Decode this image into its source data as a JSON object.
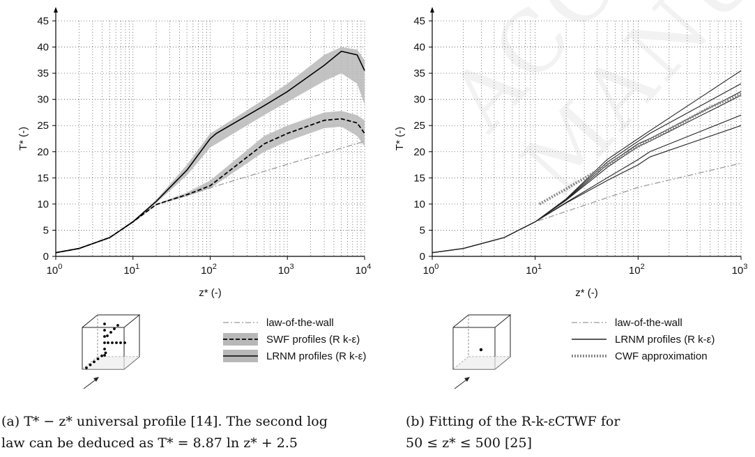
{
  "watermark": "ACCEPTED MANUSCRIPT",
  "chart_data": [
    {
      "type": "line",
      "panel": "a",
      "xlabel": "z* (-)",
      "ylabel": "T* (-)",
      "x_scale": "log",
      "xlim": [
        1,
        10000
      ],
      "ylim": [
        0,
        45
      ],
      "x_ticks": [
        "10^0",
        "10^1",
        "10^2",
        "10^3",
        "10^4"
      ],
      "y_ticks": [
        "0",
        "5",
        "10",
        "15",
        "20",
        "25",
        "30",
        "35",
        "40",
        "45"
      ],
      "grid": true,
      "legend": [
        "law-of-the-wall",
        "SWF profiles (R k-ε)",
        "LRNM profiles (R k-ε)"
      ],
      "legend_placement": "below",
      "series": [
        {
          "name": "law-of-the-wall",
          "style": "dashdot",
          "color": "#999999",
          "x": [
            1,
            2,
            5,
            10,
            20,
            50,
            100,
            1000,
            10000
          ],
          "y": [
            0.7,
            1.5,
            3.6,
            6.6,
            9.9,
            11.7,
            13.1,
            17.6,
            22.0
          ]
        },
        {
          "name": "SWF profiles (R k-ε)",
          "style": "dashed",
          "color": "#000000",
          "x": [
            1,
            2,
            5,
            10,
            20,
            50,
            100,
            500,
            1000,
            3000,
            5000,
            8000,
            10000
          ],
          "y": [
            0.7,
            1.5,
            3.6,
            6.6,
            9.9,
            11.8,
            13.5,
            21.5,
            23.5,
            26.0,
            26.3,
            25.5,
            23.5
          ],
          "band_upper": [
            0.8,
            1.6,
            3.7,
            6.8,
            10.0,
            12.2,
            14.5,
            23.0,
            25.0,
            27.5,
            27.8,
            27.0,
            26.0
          ],
          "band_lower": [
            0.6,
            1.4,
            3.5,
            6.4,
            9.8,
            11.5,
            13.0,
            20.0,
            22.0,
            24.5,
            24.8,
            23.0,
            21.0
          ]
        },
        {
          "name": "LRNM profiles (R k-ε)",
          "style": "solid",
          "color": "#000000",
          "x": [
            1,
            2,
            5,
            10,
            20,
            50,
            100,
            120,
            500,
            1000,
            3000,
            5000,
            8000,
            10000
          ],
          "y": [
            0.7,
            1.5,
            3.6,
            6.6,
            10.5,
            16.5,
            22.5,
            23.5,
            28.8,
            31.5,
            36.5,
            39.2,
            38.5,
            35.5
          ],
          "band_upper": [
            0.8,
            1.6,
            3.7,
            6.8,
            10.8,
            17.5,
            23.5,
            24.2,
            30.0,
            33.0,
            38.5,
            40.0,
            39.5,
            37.5
          ],
          "band_lower": [
            0.6,
            1.4,
            3.5,
            6.4,
            10.2,
            15.5,
            20.8,
            21.5,
            27.0,
            29.5,
            33.5,
            35.0,
            33.0,
            29.0
          ]
        }
      ]
    },
    {
      "type": "line",
      "panel": "b",
      "xlabel": "z* (-)",
      "ylabel": "T* (-)",
      "x_scale": "log",
      "xlim": [
        1,
        1000
      ],
      "ylim": [
        0,
        45
      ],
      "x_ticks": [
        "10^0",
        "10^1",
        "10^2",
        "10^3"
      ],
      "y_ticks": [
        "0",
        "5",
        "10",
        "15",
        "20",
        "25",
        "30",
        "35",
        "40",
        "45"
      ],
      "grid": true,
      "legend": [
        "law-of-the-wall",
        "LRNM profiles (R k-ε)",
        "CWF approximation"
      ],
      "legend_placement": "below",
      "series": [
        {
          "name": "law-of-the-wall",
          "style": "dashdot",
          "color": "#999999",
          "x": [
            1,
            2,
            5,
            10,
            100,
            1000
          ],
          "y": [
            0.7,
            1.5,
            3.6,
            6.6,
            13.2,
            17.8
          ]
        },
        {
          "name": "LRNM profiles (R k-ε)",
          "style": "solid",
          "color": "#222222",
          "x": [
            1,
            2,
            5,
            10,
            20,
            50,
            100,
            130,
            1000
          ],
          "y": [
            0.7,
            1.5,
            3.6,
            6.6,
            11.0,
            18.5,
            22.5,
            24.0,
            35.5
          ]
        },
        {
          "name": "LRNM profiles (R k-ε)",
          "style": "solid",
          "color": "#222222",
          "x": [
            1,
            2,
            5,
            10,
            20,
            50,
            100,
            130,
            1000
          ],
          "y": [
            0.7,
            1.5,
            3.6,
            6.6,
            10.9,
            18.0,
            22.0,
            23.5,
            33.0
          ]
        },
        {
          "name": "LRNM profiles (R k-ε)",
          "style": "solid",
          "color": "#222222",
          "x": [
            1,
            2,
            5,
            10,
            20,
            50,
            100,
            130,
            1000
          ],
          "y": [
            0.7,
            1.5,
            3.6,
            6.6,
            10.8,
            17.5,
            21.5,
            22.5,
            31.5
          ]
        },
        {
          "name": "LRNM profiles (R k-ε)",
          "style": "solid",
          "color": "#222222",
          "x": [
            1,
            2,
            5,
            10,
            20,
            50,
            100,
            130,
            1000
          ],
          "y": [
            0.7,
            1.5,
            3.6,
            6.6,
            10.7,
            17.0,
            21.0,
            22.0,
            30.8
          ]
        },
        {
          "name": "LRNM profiles (R k-ε)",
          "style": "solid",
          "color": "#222222",
          "x": [
            1,
            2,
            5,
            10,
            20,
            50,
            100,
            130,
            1000
          ],
          "y": [
            0.7,
            1.5,
            3.6,
            6.6,
            10.3,
            15.0,
            18.5,
            20.0,
            27.0
          ]
        },
        {
          "name": "LRNM profiles (R k-ε)",
          "style": "solid",
          "color": "#222222",
          "x": [
            1,
            2,
            5,
            10,
            20,
            50,
            100,
            130,
            1000
          ],
          "y": [
            0.7,
            1.5,
            3.6,
            6.6,
            10.2,
            14.5,
            17.5,
            19.0,
            25.0
          ]
        },
        {
          "name": "CWF approximation",
          "style": "dotted-thick",
          "color": "#888888",
          "x": [
            11,
            20,
            50,
            100,
            200,
            500,
            1000
          ],
          "y": [
            10.0,
            12.9,
            17.5,
            21.0,
            24.2,
            28.5,
            31.0
          ]
        }
      ]
    }
  ],
  "inset_a": {
    "points": "cross"
  },
  "inset_b": {
    "points": "single"
  },
  "captions": {
    "a_line1": "(a) T* − z* universal profile [14]. The second log",
    "a_line2": "law can be deduced as T* = 8.87 ln z* + 2.5",
    "b_line1": "(b) Fitting of the R-k-εCTWF for",
    "b_line2": "50 ≤ z* ≤ 500 [25]"
  }
}
